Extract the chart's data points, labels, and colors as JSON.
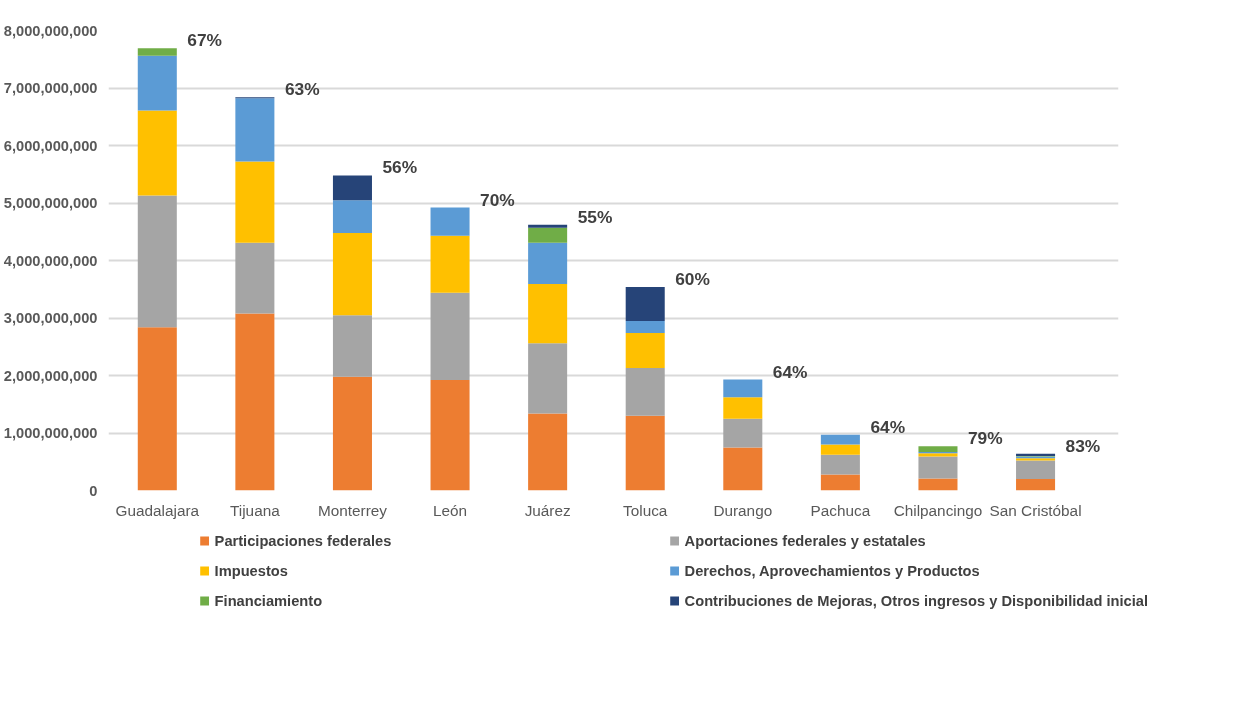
{
  "chart_data": {
    "type": "bar",
    "stacked": true,
    "categories": [
      "Guadalajara",
      "Tijuana",
      "Monterrey",
      "León",
      "Juárez",
      "Toluca",
      "Durango",
      "Pachuca",
      "Chilpancingo",
      "San Cristóbal"
    ],
    "series": [
      {
        "name": "Participaciones federales",
        "color": "#ed7d31",
        "values": [
          2840000000,
          3080000000,
          1980000000,
          1920000000,
          1340000000,
          1300000000,
          750000000,
          280000000,
          210000000,
          200000000
        ]
      },
      {
        "name": "Aportaciones federales y estatales",
        "color": "#a5a5a5",
        "values": [
          2290000000,
          1230000000,
          1070000000,
          1520000000,
          1220000000,
          830000000,
          500000000,
          340000000,
          380000000,
          320000000
        ]
      },
      {
        "name": "Impuestos",
        "color": "#ffc000",
        "values": [
          1480000000,
          1410000000,
          1430000000,
          990000000,
          1030000000,
          610000000,
          370000000,
          180000000,
          60000000,
          40000000
        ]
      },
      {
        "name": "Derechos, Aprovechamientos y Productos",
        "color": "#5b9bd5",
        "values": [
          950000000,
          1100000000,
          570000000,
          490000000,
          720000000,
          210000000,
          310000000,
          170000000,
          20000000,
          30000000
        ]
      },
      {
        "name": "Financiamiento",
        "color": "#70ad47",
        "values": [
          130000000,
          0,
          0,
          0,
          260000000,
          0,
          0,
          0,
          100000000,
          10000000
        ]
      },
      {
        "name": "Contribuciones de Mejoras, Otros ingresos y Disponibilidad inicial",
        "color": "#264478",
        "values": [
          0,
          20000000,
          430000000,
          0,
          50000000,
          590000000,
          0,
          0,
          0,
          40000000
        ]
      }
    ],
    "ylim": [
      0,
      8000000000
    ],
    "yticks": [
      {
        "value": 0,
        "label": "0"
      },
      {
        "value": 1000000000,
        "label": "1,000,000,000"
      },
      {
        "value": 2000000000,
        "label": "2,000,000,000"
      },
      {
        "value": 3000000000,
        "label": "3,000,000,000"
      },
      {
        "value": 4000000000,
        "label": "4,000,000,000"
      },
      {
        "value": 5000000000,
        "label": "5,000,000,000"
      },
      {
        "value": 6000000000,
        "label": "6,000,000,000"
      },
      {
        "value": 7000000000,
        "label": "7,000,000,000"
      },
      {
        "value": 8000000000,
        "label": "8,000,000,000"
      }
    ],
    "grid": "y",
    "legend": "bottom",
    "annotations": [
      {
        "text": "67%",
        "x": "Guadalajara",
        "y": 7690000000
      },
      {
        "text": "63%",
        "x": "Tijuana",
        "y": 6840000000
      },
      {
        "text": "56%",
        "x": "Monterrey",
        "y": 5480000000
      },
      {
        "text": "70%",
        "x": "León",
        "y": 4920000000
      },
      {
        "text": "55%",
        "x": "Juárez",
        "y": 4620000000
      },
      {
        "text": "60%",
        "x": "Toluca",
        "y": 3540000000
      },
      {
        "text": "64%",
        "x": "Durango",
        "y": 1930000000
      },
      {
        "text": "64%",
        "x": "Pachuca",
        "y": 970000000
      },
      {
        "text": "79%",
        "x": "Chilpancingo",
        "y": 770000000
      },
      {
        "text": "83%",
        "x": "San Cristóbal",
        "y": 640000000
      }
    ]
  }
}
